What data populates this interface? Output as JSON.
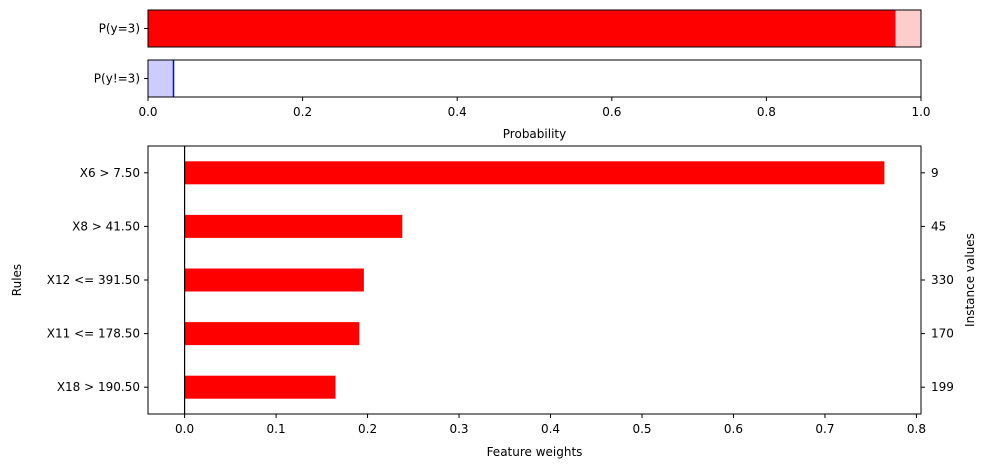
{
  "chart_data": [
    {
      "type": "bar",
      "orientation": "horizontal",
      "categories": [
        "P(y=3)",
        "P(y!=3)"
      ],
      "series": [
        {
          "values": [
            0.967,
            0.033
          ]
        }
      ],
      "xlim": [
        0.0,
        1.0
      ],
      "xticks": [
        "0.0",
        "0.2",
        "0.4",
        "0.6",
        "0.8",
        "1.0"
      ],
      "xlabel": "Probability",
      "ylabel": "",
      "colors": {
        "positive": "#ff0000",
        "positive_bg": "#ffcccc",
        "negative": "#0000ff",
        "negative_bg": "#ccccff"
      }
    },
    {
      "type": "bar",
      "orientation": "horizontal",
      "categories": [
        "X6 > 7.50",
        "X8 > 41.50",
        "X12 <= 391.50",
        "X11 <= 178.50",
        "X18 > 190.50"
      ],
      "values": [
        0.765,
        0.238,
        0.196,
        0.191,
        0.165
      ],
      "instance_values": [
        "9",
        "45",
        "330",
        "170",
        "199"
      ],
      "xlim": [
        -0.04,
        0.805
      ],
      "xticks": [
        "0.0",
        "0.1",
        "0.2",
        "0.3",
        "0.4",
        "0.5",
        "0.6",
        "0.7",
        "0.8"
      ],
      "xlabel": "Feature weights",
      "ylabel": "Rules",
      "y2label": "Instance values",
      "colors": {
        "bar": "#ff0000",
        "zero_line": "#000000"
      }
    }
  ]
}
